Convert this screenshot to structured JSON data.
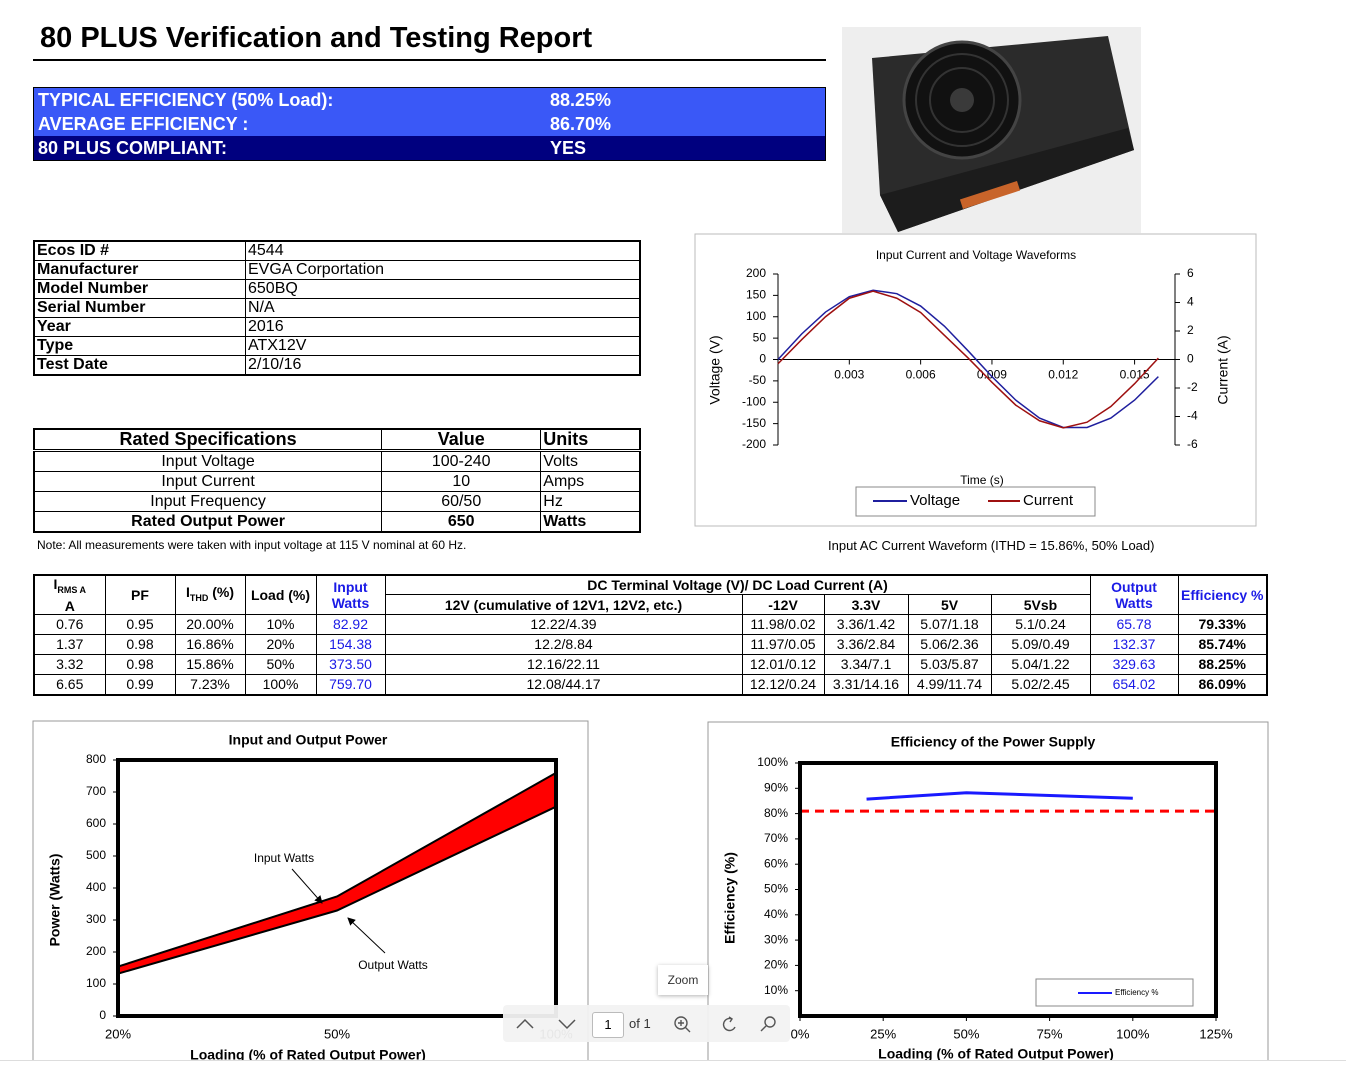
{
  "header": {
    "title": "80 PLUS Verification and Testing Report"
  },
  "summary": {
    "rows": [
      [
        "TYPICAL EFFICIENCY (50% Load):",
        "88.25%"
      ],
      [
        "AVERAGE EFFICIENCY :",
        "86.70%"
      ],
      [
        "80 PLUS COMPLIANT:",
        "YES"
      ]
    ]
  },
  "info": {
    "rows": [
      [
        "Ecos ID #",
        "4544"
      ],
      [
        "Manufacturer",
        "EVGA Corportation"
      ],
      [
        "Model Number",
        "650BQ"
      ],
      [
        "Serial Number",
        "N/A"
      ],
      [
        "Year",
        "2016"
      ],
      [
        "Type",
        "ATX12V"
      ],
      [
        "Test Date",
        "2/10/16"
      ]
    ]
  },
  "specs": {
    "header": [
      "Rated Specifications",
      "Value",
      "Units"
    ],
    "rows": [
      [
        "Input Voltage",
        "100-240",
        "Volts"
      ],
      [
        "Input Current",
        "10",
        "Amps"
      ],
      [
        "Input Frequency",
        "60/50",
        "Hz"
      ],
      [
        "Rated Output Power",
        "650",
        "Watts"
      ]
    ]
  },
  "note": "Note: All measurements were taken with input voltage at 115 V nominal at 60 Hz.",
  "waveform_caption": "Input AC Current Waveform (ITHD = 15.86%, 50% Load)",
  "results": {
    "head": {
      "irms": {
        "main": "I",
        "sub": "RMS A",
        "line2": "A"
      },
      "pf": "PF",
      "ithd": {
        "main": "I",
        "sub": "THD",
        "rest": " (%)"
      },
      "load": "Load (%)",
      "input": "Input Watts",
      "dc": "DC Terminal Voltage (V)/ DC Load Current (A)",
      "rails": [
        "12V (cumulative of 12V1, 12V2, etc.)",
        "-12V",
        "3.3V",
        "5V",
        "5Vsb"
      ],
      "output": "Output Watts",
      "efficiency": "Efficiency %"
    },
    "rows": [
      [
        "0.76",
        "0.95",
        "20.00%",
        "10%",
        "82.92",
        "12.22/4.39",
        "11.98/0.02",
        "3.36/1.42",
        "5.07/1.18",
        "5.1/0.24",
        "65.78",
        "79.33%"
      ],
      [
        "1.37",
        "0.98",
        "16.86%",
        "20%",
        "154.38",
        "12.2/8.84",
        "11.97/0.05",
        "3.36/2.84",
        "5.06/2.36",
        "5.09/0.49",
        "132.37",
        "85.74%"
      ],
      [
        "3.32",
        "0.98",
        "15.86%",
        "50%",
        "373.50",
        "12.16/22.11",
        "12.01/0.12",
        "3.34/7.1",
        "5.03/5.87",
        "5.04/1.22",
        "329.63",
        "88.25%"
      ],
      [
        "6.65",
        "0.99",
        "7.23%",
        "100%",
        "759.70",
        "12.08/44.17",
        "12.12/0.24",
        "3.31/14.16",
        "4.99/11.74",
        "5.02/2.45",
        "654.02",
        "86.09%"
      ]
    ]
  },
  "toolbar": {
    "page": "1",
    "of": "of 1",
    "tooltip": "Zoom"
  },
  "chart_data": [
    {
      "type": "line",
      "title": "Input Current and Voltage Waveforms",
      "x_label": "Time (s)",
      "y_label": "Voltage (V)",
      "y2_label": "Current (A)",
      "x": [
        0,
        0.001,
        0.002,
        0.003,
        0.004,
        0.005,
        0.006,
        0.007,
        0.008,
        0.009,
        0.01,
        0.011,
        0.012,
        0.013,
        0.014,
        0.015,
        0.016
      ],
      "series": [
        {
          "name": "Voltage",
          "color": "#1f1f9e",
          "values": [
            0,
            60,
            111,
            147,
            162,
            154,
            125,
            78,
            20,
            -40,
            -95,
            -137,
            -159,
            -159,
            -137,
            -95,
            -40
          ]
        },
        {
          "name": "Current",
          "color": "#9e1010",
          "axis": "y2",
          "values": [
            -0.3,
            1.4,
            3.0,
            4.3,
            4.8,
            4.3,
            3.3,
            1.7,
            0.1,
            -1.6,
            -3.2,
            -4.3,
            -4.8,
            -4.4,
            -3.3,
            -1.7,
            0.1
          ]
        }
      ],
      "xlim": [
        0,
        0.0167
      ],
      "xticks": [
        0.003,
        0.006,
        0.009,
        0.012,
        0.015
      ],
      "ylim": [
        -200,
        200
      ],
      "yticks": [
        -200,
        -150,
        -100,
        -50,
        0,
        50,
        100,
        150,
        200
      ],
      "y2lim": [
        -6,
        6
      ],
      "y2ticks": [
        -6,
        -4,
        -2,
        0,
        2,
        4,
        6
      ],
      "legend": "bottom"
    },
    {
      "type": "line",
      "title": "Input and Output Power",
      "x_label": "Loading (% of Rated Output Power)",
      "y_label": "Power (Watts)",
      "categories": [
        "20%",
        "50%",
        "100%"
      ],
      "series": [
        {
          "name": "Input Watts",
          "color": "#000000",
          "values": [
            154.38,
            373.5,
            759.7
          ]
        },
        {
          "name": "Output Watts",
          "color": "#000000",
          "values": [
            132.37,
            329.63,
            654.02
          ]
        }
      ],
      "fill": "#ff0000",
      "ylim": [
        0,
        800
      ],
      "yticks": [
        0,
        100,
        200,
        300,
        400,
        500,
        600,
        700,
        800
      ]
    },
    {
      "type": "line",
      "title": "Efficiency of the Power Supply",
      "x_label": "Loading (% of Rated Output Power)",
      "y_label": "Efficiency (%)",
      "x": [
        20,
        50,
        100
      ],
      "series": [
        {
          "name": "Efficiency %",
          "color": "#1a1aff",
          "values": [
            85.74,
            88.25,
            86.09
          ]
        }
      ],
      "xlim": [
        0,
        125
      ],
      "xticks": [
        {
          "value": 0,
          "label": "0%"
        },
        {
          "value": 25,
          "label": "25%"
        },
        {
          "value": 50,
          "label": "50%"
        },
        {
          "value": 75,
          "label": "75%"
        },
        {
          "value": 100,
          "label": "100%"
        },
        {
          "value": 125,
          "label": "125%"
        }
      ],
      "ylim": [
        0,
        100
      ],
      "yticks": [
        {
          "value": 10,
          "label": "10%"
        },
        {
          "value": 20,
          "label": "20%"
        },
        {
          "value": 30,
          "label": "30%"
        },
        {
          "value": 40,
          "label": "40%"
        },
        {
          "value": 50,
          "label": "50%"
        },
        {
          "value": 60,
          "label": "60%"
        },
        {
          "value": 70,
          "label": "70%"
        },
        {
          "value": 80,
          "label": "80%"
        },
        {
          "value": 90,
          "label": "90%"
        },
        {
          "value": 100,
          "label": "100%"
        }
      ],
      "threshold": {
        "value": 81,
        "color": "#ff0000"
      },
      "legend": "lower right"
    }
  ]
}
